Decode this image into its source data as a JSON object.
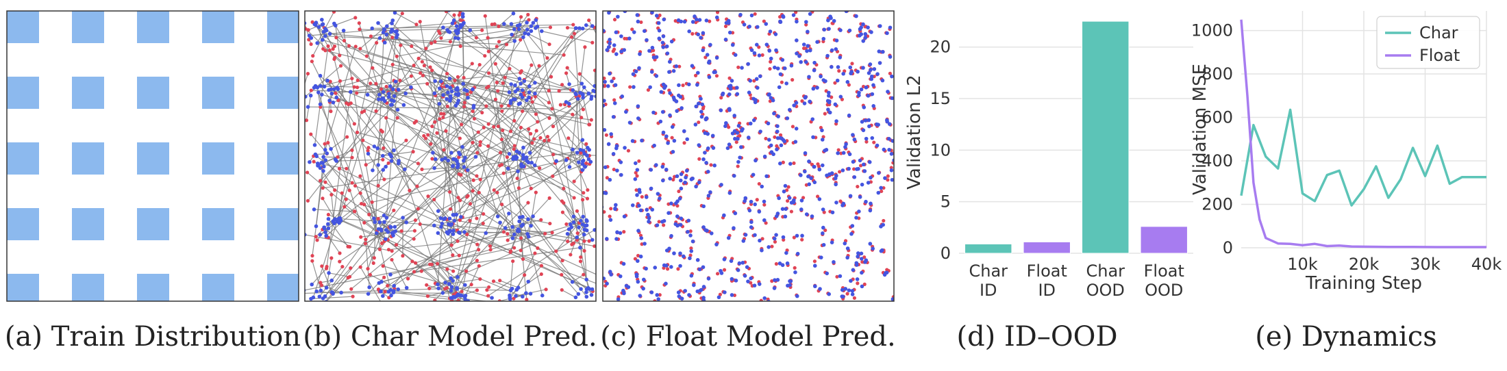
{
  "panels": {
    "a": {
      "caption": "(a) Train Distribution"
    },
    "b": {
      "caption": "(b) Char Model Pred."
    },
    "c": {
      "caption": "(c) Float Model Pred."
    },
    "d": {
      "caption": "(d) ID–OOD"
    },
    "e": {
      "caption": "(e) Dynamics"
    }
  },
  "colors": {
    "train_square": "#8cb9ee",
    "pred_point": "#4455e0",
    "target_point": "#e04455",
    "error_line": "#777777",
    "char": "#5cc4b7",
    "float": "#a77cf0",
    "grid": "#e3e3e3"
  },
  "chart_data": [
    {
      "type": "heatmap",
      "panel": "a",
      "description": "5x5 grid of training squares",
      "grid_rows": 5,
      "grid_cols": 5
    },
    {
      "type": "bar",
      "panel": "d",
      "categories": [
        [
          "Char",
          "ID"
        ],
        [
          "Float",
          "ID"
        ],
        [
          "Char",
          "OOD"
        ],
        [
          "Float",
          "OOD"
        ]
      ],
      "values": [
        0.9,
        1.1,
        22.5,
        2.6
      ],
      "bar_colors": [
        "char",
        "float",
        "char",
        "float"
      ],
      "ylabel": "Validation L2",
      "ylim": [
        0,
        23.5
      ],
      "yticks": [
        0,
        5,
        10,
        15,
        20
      ],
      "grid": true
    },
    {
      "type": "line",
      "panel": "e",
      "xlabel": "Training Step",
      "ylabel": "Validation MSE",
      "xlim": [
        0,
        40000
      ],
      "ylim": [
        0,
        1090
      ],
      "xticks": [
        10000,
        20000,
        30000,
        40000
      ],
      "xtick_labels": [
        "10k",
        "20k",
        "30k",
        "40k"
      ],
      "yticks": [
        0,
        200,
        400,
        600,
        800,
        1000
      ],
      "grid": true,
      "legend": "top-right",
      "series": [
        {
          "name": "Char",
          "color": "char",
          "x": [
            0,
            2000,
            4000,
            6000,
            8000,
            10000,
            12000,
            14000,
            16000,
            18000,
            20000,
            22000,
            24000,
            26000,
            28000,
            30000,
            32000,
            34000,
            36000,
            38000,
            40000
          ],
          "y": [
            240,
            565,
            420,
            365,
            635,
            250,
            215,
            335,
            355,
            195,
            270,
            375,
            230,
            315,
            460,
            330,
            470,
            295,
            325,
            325,
            325
          ]
        },
        {
          "name": "Float",
          "color": "float",
          "x": [
            0,
            1000,
            2000,
            3000,
            4000,
            6000,
            8000,
            10000,
            12000,
            14000,
            16000,
            18000,
            20000,
            24000,
            28000,
            32000,
            36000,
            40000
          ],
          "y": [
            1050,
            700,
            300,
            130,
            45,
            20,
            18,
            12,
            18,
            8,
            10,
            6,
            5,
            4,
            4,
            3,
            3,
            3
          ]
        }
      ]
    }
  ]
}
